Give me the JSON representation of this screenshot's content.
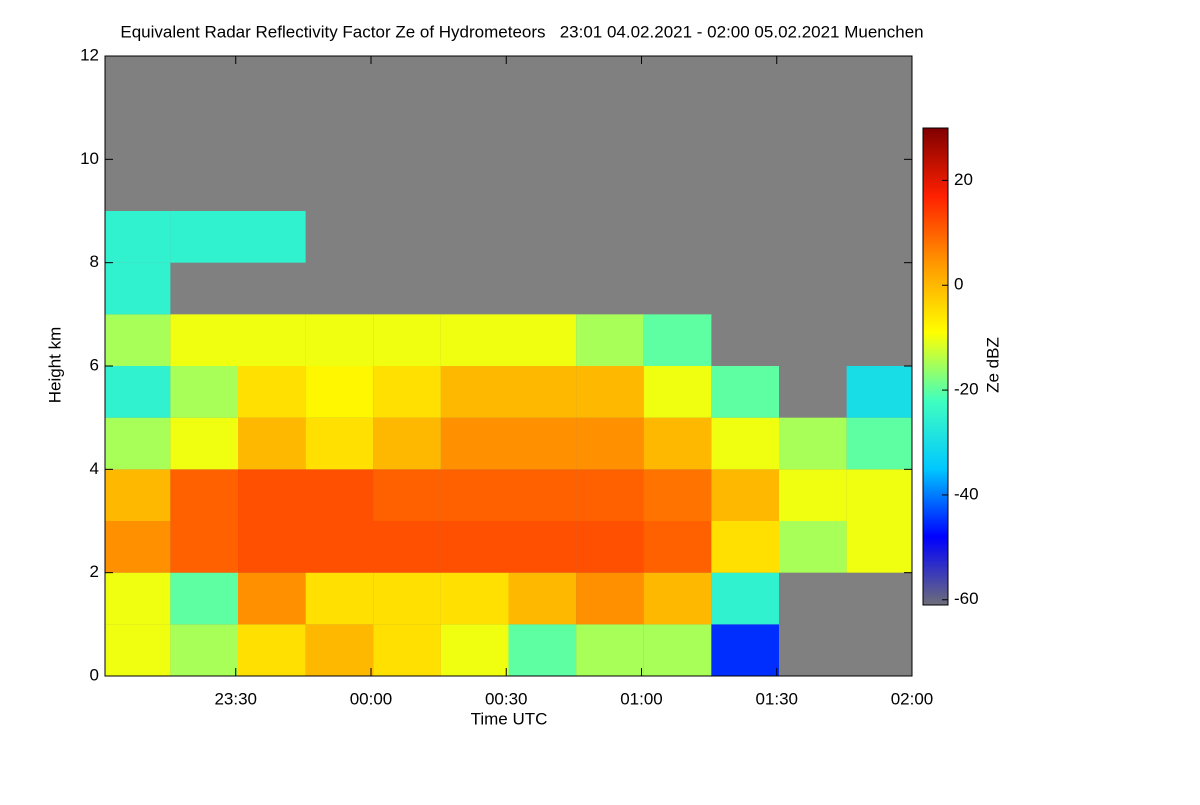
{
  "chart_data": {
    "type": "heatmap",
    "title": "Equivalent Radar Reflectivity Factor Ze of Hydrometeors   23:01 04.02.2021 - 02:00 05.02.2021 Muenchen",
    "x_label": "Time UTC",
    "y_label": "Height km",
    "colorbar_label": "Ze dBZ",
    "xlim": [
      -59,
      120
    ],
    "xticks": [
      {
        "value": -30,
        "label": "23:30"
      },
      {
        "value": 0,
        "label": "00:00"
      },
      {
        "value": 30,
        "label": "00:30"
      },
      {
        "value": 60,
        "label": "01:00"
      },
      {
        "value": 90,
        "label": "01:30"
      },
      {
        "value": 120,
        "label": "02:00"
      }
    ],
    "ylim": [
      0,
      12
    ],
    "yticks": [
      0,
      2,
      4,
      6,
      8,
      10,
      12
    ],
    "zlim": [
      -61,
      30
    ],
    "zticks": [
      -60,
      -40,
      -20,
      0,
      20
    ],
    "background": "#808080",
    "colorscale": [
      "#6e6e7a",
      "#0000ff",
      "#00c8ff",
      "#40ffbf",
      "#ffff00",
      "#ff9900",
      "#ff2000",
      "#800000"
    ],
    "x": [
      -52,
      -37,
      -22,
      -7,
      8,
      23,
      38,
      53,
      68,
      83,
      98,
      113
    ],
    "y": [
      0.5,
      1.5,
      2.5,
      3.5,
      4.5,
      5.5,
      6.5,
      7.5,
      8.5
    ],
    "z": [
      [
        -10,
        -10,
        5,
        0,
        -15,
        -25,
        -15,
        -25,
        -25
      ],
      [
        -15,
        -20,
        10,
        10,
        -10,
        -15,
        -10,
        null,
        -25
      ],
      [
        -5,
        5,
        12,
        12,
        0,
        -5,
        -10,
        null,
        -25
      ],
      [
        0,
        -5,
        12,
        12,
        -5,
        -8,
        -10,
        null,
        null
      ],
      [
        -5,
        -5,
        12,
        10,
        0,
        -5,
        -10,
        null,
        null
      ],
      [
        -10,
        -5,
        12,
        10,
        5,
        0,
        -10,
        null,
        null
      ],
      [
        -20,
        0,
        12,
        10,
        5,
        0,
        -10,
        null,
        null
      ],
      [
        -15,
        5,
        12,
        10,
        5,
        0,
        -15,
        null,
        null
      ],
      [
        -15,
        0,
        10,
        8,
        0,
        -10,
        -20,
        null,
        null
      ],
      [
        -45,
        -25,
        -5,
        0,
        -10,
        -20,
        null,
        null,
        null
      ],
      [
        null,
        null,
        -15,
        -10,
        -15,
        null,
        null,
        null,
        null
      ],
      [
        null,
        null,
        -10,
        -10,
        -20,
        -30,
        null,
        null,
        null
      ]
    ]
  }
}
